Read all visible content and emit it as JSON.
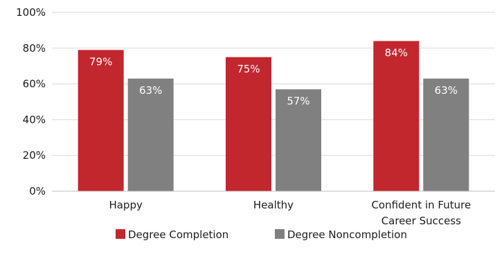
{
  "chart_data": {
    "type": "bar",
    "categories": [
      "Happy",
      "Healthy",
      "Confident in Future Career Success"
    ],
    "series": [
      {
        "name": "Degree Completion",
        "values": [
          79,
          75,
          84
        ],
        "color": "#c1272d"
      },
      {
        "name": "Degree Noncompletion",
        "values": [
          63,
          57,
          63
        ],
        "color": "#808080"
      }
    ],
    "data_labels": [
      [
        "79%",
        "75%",
        "84%"
      ],
      [
        "63%",
        "57%",
        "63%"
      ]
    ],
    "yticks": [
      "0%",
      "20%",
      "40%",
      "60%",
      "80%",
      "100%"
    ],
    "ylim": [
      0,
      100
    ],
    "grid": true,
    "legend_position": "bottom-center",
    "gridline_color": "#d9d9d9",
    "axis_color": "#bfbfbf"
  }
}
